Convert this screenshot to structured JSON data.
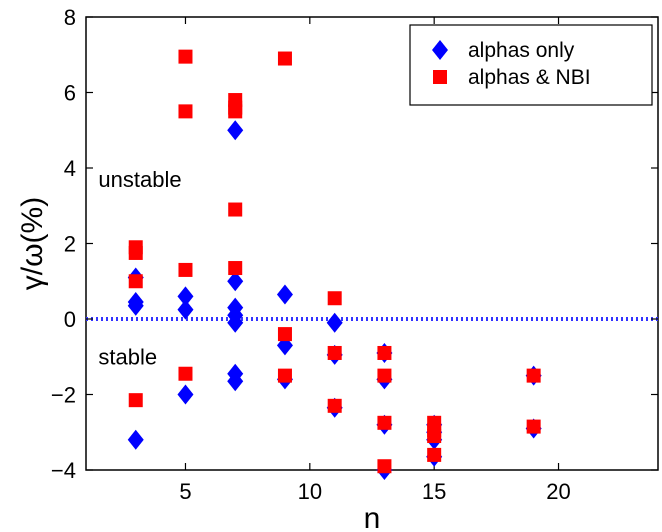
{
  "chart_data": {
    "type": "scatter",
    "xlabel": "n",
    "ylabel": "γ/ω(%)",
    "xlim": [
      1,
      24
    ],
    "ylim": [
      -4,
      8
    ],
    "xticks": [
      5,
      10,
      15,
      20
    ],
    "yticks": [
      -4,
      -2,
      0,
      2,
      4,
      6,
      8
    ],
    "xtick_labels": [
      "5",
      "10",
      "15",
      "20"
    ],
    "ytick_labels": [
      "−4",
      "−2",
      "0",
      "2",
      "4",
      "6",
      "8"
    ],
    "grid": false,
    "legend_position": "top-right",
    "reference_line": {
      "y": 0,
      "style": "dotted",
      "color": "#3333ff"
    },
    "annotations": [
      {
        "text": "unstable",
        "x": 1.5,
        "y": 3.5
      },
      {
        "text": "stable",
        "x": 1.5,
        "y": -1.2
      }
    ],
    "series": [
      {
        "name": "alphas only",
        "marker": "diamond",
        "color": "#0000ff",
        "points": [
          [
            3,
            1.1
          ],
          [
            3,
            0.45
          ],
          [
            3,
            0.35
          ],
          [
            3,
            -3.2
          ],
          [
            5,
            0.6
          ],
          [
            5,
            0.25
          ],
          [
            5,
            -2.0
          ],
          [
            7,
            5.0
          ],
          [
            7,
            1.0
          ],
          [
            7,
            0.3
          ],
          [
            7,
            0.1
          ],
          [
            7,
            -0.1
          ],
          [
            7,
            -1.45
          ],
          [
            7,
            -1.65
          ],
          [
            9,
            0.65
          ],
          [
            9,
            -0.7
          ],
          [
            9,
            -1.6
          ],
          [
            11,
            -0.1
          ],
          [
            11,
            -0.95
          ],
          [
            11,
            -2.35
          ],
          [
            13,
            -0.9
          ],
          [
            13,
            -1.6
          ],
          [
            13,
            -2.8
          ],
          [
            13,
            -4.0
          ],
          [
            15,
            -2.8
          ],
          [
            15,
            -3.0
          ],
          [
            15,
            -3.2
          ],
          [
            15,
            -3.65
          ],
          [
            19,
            -1.5
          ],
          [
            19,
            -2.9
          ]
        ]
      },
      {
        "name": "alphas & NBI",
        "marker": "square",
        "color": "#ff0000",
        "points": [
          [
            3,
            1.9
          ],
          [
            3,
            1.75
          ],
          [
            3,
            1.0
          ],
          [
            3,
            -2.15
          ],
          [
            5,
            6.95
          ],
          [
            5,
            5.5
          ],
          [
            5,
            1.3
          ],
          [
            5,
            -1.45
          ],
          [
            7,
            5.8
          ],
          [
            7,
            5.6
          ],
          [
            7,
            5.5
          ],
          [
            7,
            2.9
          ],
          [
            7,
            1.35
          ],
          [
            9,
            6.9
          ],
          [
            9,
            -0.4
          ],
          [
            9,
            -1.5
          ],
          [
            11,
            0.55
          ],
          [
            11,
            -0.9
          ],
          [
            11,
            -2.3
          ],
          [
            13,
            -0.9
          ],
          [
            13,
            -1.5
          ],
          [
            13,
            -2.75
          ],
          [
            13,
            -3.9
          ],
          [
            15,
            -2.75
          ],
          [
            15,
            -2.95
          ],
          [
            15,
            -3.1
          ],
          [
            15,
            -3.6
          ],
          [
            19,
            -1.5
          ],
          [
            19,
            -2.85
          ]
        ]
      }
    ]
  }
}
